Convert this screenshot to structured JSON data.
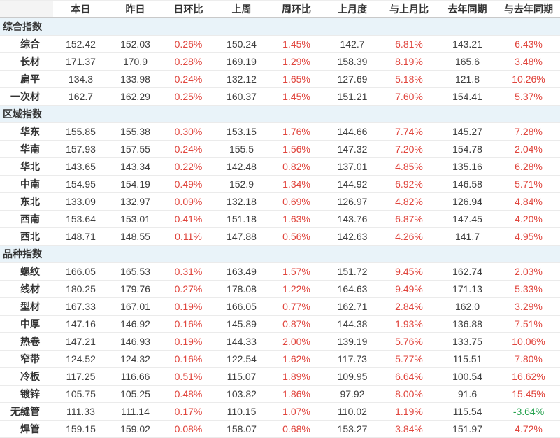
{
  "chart_data": {
    "type": "table",
    "columns": [
      "",
      "本日",
      "昨日",
      "日环比",
      "上周",
      "周环比",
      "上月度",
      "与上月比",
      "去年同期",
      "与去年同期"
    ],
    "sections": [
      {
        "label": "综合指数",
        "rows": [
          {
            "label": "综合",
            "values": [
              "152.42",
              "152.03",
              "0.26%",
              "150.24",
              "1.45%",
              "142.7",
              "6.81%",
              "143.21",
              "6.43%"
            ]
          },
          {
            "label": "长材",
            "values": [
              "171.37",
              "170.9",
              "0.28%",
              "169.19",
              "1.29%",
              "158.39",
              "8.19%",
              "165.6",
              "3.48%"
            ]
          },
          {
            "label": "扁平",
            "values": [
              "134.3",
              "133.98",
              "0.24%",
              "132.12",
              "1.65%",
              "127.69",
              "5.18%",
              "121.8",
              "10.26%"
            ]
          },
          {
            "label": "一次材",
            "values": [
              "162.7",
              "162.29",
              "0.25%",
              "160.37",
              "1.45%",
              "151.21",
              "7.60%",
              "154.41",
              "5.37%"
            ]
          }
        ]
      },
      {
        "label": "区域指数",
        "rows": [
          {
            "label": "华东",
            "values": [
              "155.85",
              "155.38",
              "0.30%",
              "153.15",
              "1.76%",
              "144.66",
              "7.74%",
              "145.27",
              "7.28%"
            ]
          },
          {
            "label": "华南",
            "values": [
              "157.93",
              "157.55",
              "0.24%",
              "155.5",
              "1.56%",
              "147.32",
              "7.20%",
              "154.78",
              "2.04%"
            ]
          },
          {
            "label": "华北",
            "values": [
              "143.65",
              "143.34",
              "0.22%",
              "142.48",
              "0.82%",
              "137.01",
              "4.85%",
              "135.16",
              "6.28%"
            ]
          },
          {
            "label": "中南",
            "values": [
              "154.95",
              "154.19",
              "0.49%",
              "152.9",
              "1.34%",
              "144.92",
              "6.92%",
              "146.58",
              "5.71%"
            ]
          },
          {
            "label": "东北",
            "values": [
              "133.09",
              "132.97",
              "0.09%",
              "132.18",
              "0.69%",
              "126.97",
              "4.82%",
              "126.94",
              "4.84%"
            ]
          },
          {
            "label": "西南",
            "values": [
              "153.64",
              "153.01",
              "0.41%",
              "151.18",
              "1.63%",
              "143.76",
              "6.87%",
              "147.45",
              "4.20%"
            ]
          },
          {
            "label": "西北",
            "values": [
              "148.71",
              "148.55",
              "0.11%",
              "147.88",
              "0.56%",
              "142.63",
              "4.26%",
              "141.7",
              "4.95%"
            ]
          }
        ]
      },
      {
        "label": "品种指数",
        "rows": [
          {
            "label": "螺纹",
            "values": [
              "166.05",
              "165.53",
              "0.31%",
              "163.49",
              "1.57%",
              "151.72",
              "9.45%",
              "162.74",
              "2.03%"
            ]
          },
          {
            "label": "线材",
            "values": [
              "180.25",
              "179.76",
              "0.27%",
              "178.08",
              "1.22%",
              "164.63",
              "9.49%",
              "171.13",
              "5.33%"
            ]
          },
          {
            "label": "型材",
            "values": [
              "167.33",
              "167.01",
              "0.19%",
              "166.05",
              "0.77%",
              "162.71",
              "2.84%",
              "162.0",
              "3.29%"
            ]
          },
          {
            "label": "中厚",
            "values": [
              "147.16",
              "146.92",
              "0.16%",
              "145.89",
              "0.87%",
              "144.38",
              "1.93%",
              "136.88",
              "7.51%"
            ]
          },
          {
            "label": "热卷",
            "values": [
              "147.21",
              "146.93",
              "0.19%",
              "144.33",
              "2.00%",
              "139.19",
              "5.76%",
              "133.75",
              "10.06%"
            ]
          },
          {
            "label": "窄带",
            "values": [
              "124.52",
              "124.32",
              "0.16%",
              "122.54",
              "1.62%",
              "117.73",
              "5.77%",
              "115.51",
              "7.80%"
            ]
          },
          {
            "label": "冷板",
            "values": [
              "117.25",
              "116.66",
              "0.51%",
              "115.07",
              "1.89%",
              "109.95",
              "6.64%",
              "100.54",
              "16.62%"
            ]
          },
          {
            "label": "镀锌",
            "values": [
              "105.75",
              "105.25",
              "0.48%",
              "103.82",
              "1.86%",
              "97.92",
              "8.00%",
              "91.6",
              "15.45%"
            ]
          },
          {
            "label": "无缝管",
            "values": [
              "111.33",
              "111.14",
              "0.17%",
              "110.15",
              "1.07%",
              "110.02",
              "1.19%",
              "115.54",
              "-3.64%"
            ]
          },
          {
            "label": "焊管",
            "values": [
              "159.15",
              "159.02",
              "0.08%",
              "158.07",
              "0.68%",
              "153.27",
              "3.84%",
              "151.97",
              "4.72%"
            ]
          }
        ]
      }
    ]
  },
  "colors": {
    "up": "#e0443c",
    "down": "#23a14d",
    "text": "#3e3e3e",
    "section_bg": "#e9f3f9",
    "row_border": "#ebebeb",
    "header_border": "#c9c9c9"
  }
}
